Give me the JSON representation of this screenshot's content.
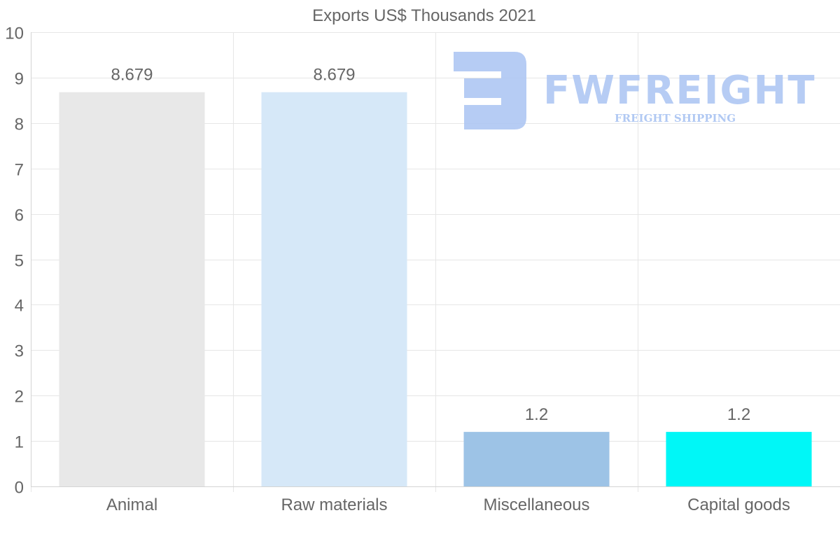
{
  "chart_data": {
    "type": "bar",
    "title": "Exports US$ Thousands 2021",
    "categories": [
      "Animal",
      "Raw materials",
      "Miscellaneous",
      "Capital goods"
    ],
    "values": [
      8.679,
      8.679,
      1.2,
      1.2
    ],
    "data_labels": [
      "8.679",
      "8.679",
      "1.2",
      "1.2"
    ],
    "bar_colors": [
      "#e8e8e8",
      "#d6e8f8",
      "#9dc3e6",
      "#00f7f7"
    ],
    "xlabel": "",
    "ylabel": "",
    "ylim": [
      0,
      10
    ],
    "yticks": [
      0,
      1,
      2,
      3,
      4,
      5,
      6,
      7,
      8,
      9,
      10
    ],
    "grid": true,
    "legend": "none"
  },
  "watermark": {
    "brand": "FWFREIGHT",
    "tagline": "FREIGHT SHIPPING",
    "color": "#a9c3f2"
  }
}
